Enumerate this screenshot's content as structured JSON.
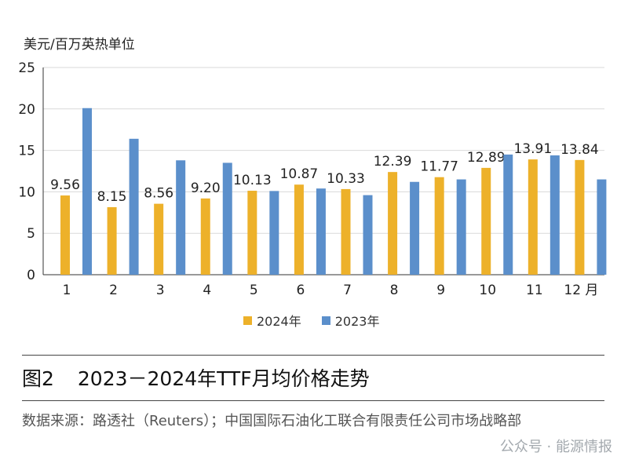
{
  "chart_data": {
    "type": "bar",
    "ylabel": "美元/百万英热单位",
    "categories": [
      "1",
      "2",
      "3",
      "4",
      "5",
      "6",
      "7",
      "8",
      "9",
      "10",
      "11",
      "12 月"
    ],
    "ylim": [
      0,
      25
    ],
    "yticks": [
      0,
      5,
      10,
      15,
      20,
      25
    ],
    "grid": true,
    "legend_position": "bottom",
    "series": [
      {
        "name": "2024年",
        "color": "#EDB12A",
        "values": [
          9.56,
          8.15,
          8.56,
          9.2,
          10.13,
          10.87,
          10.33,
          12.39,
          11.77,
          12.89,
          13.91,
          13.84
        ],
        "labels": [
          "9.56",
          "8.15",
          "8.56",
          "9.20",
          "10.13",
          "10.87",
          "10.33",
          "12.39",
          "11.77",
          "12.89",
          "13.91",
          "13.84"
        ]
      },
      {
        "name": "2023年",
        "color": "#5B8FCB",
        "values": [
          20.1,
          16.4,
          13.8,
          13.5,
          10.1,
          10.4,
          9.6,
          11.2,
          11.5,
          14.5,
          14.4,
          11.5
        ]
      }
    ]
  },
  "figure": {
    "number": "图2",
    "title": "2023－2024年TTF月均价格走势",
    "source": "数据来源：路透社（Reuters）；中国国际石油化工联合有限责任公司市场战略部",
    "watermark": "公众号 · 能源情报"
  }
}
